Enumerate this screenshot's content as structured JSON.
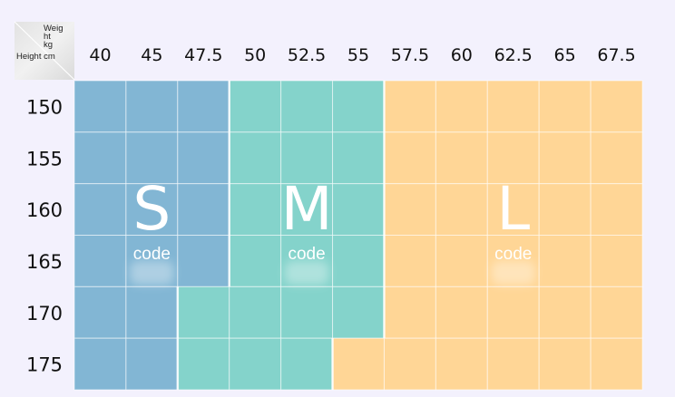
{
  "chart_data": {
    "type": "heatmap",
    "title": "",
    "corner": {
      "weight_label": [
        "Weig",
        "ht",
        "kg"
      ],
      "height_label": "Height cm"
    },
    "x": [
      "40",
      "45",
      "47.5",
      "50",
      "52.5",
      "55",
      "57.5",
      "60",
      "62.5",
      "65",
      "67.5"
    ],
    "y": [
      "150",
      "155",
      "160",
      "165",
      "170",
      "175"
    ],
    "sizes": [
      {
        "key": "S",
        "letter": "S",
        "code": "code",
        "color": "#82b6d4"
      },
      {
        "key": "M",
        "letter": "M",
        "code": "code",
        "color": "#84d3cb"
      },
      {
        "key": "L",
        "letter": "L",
        "code": "code",
        "color": "#ffd696"
      }
    ],
    "grid": [
      [
        "S",
        "S",
        "S",
        "M",
        "M",
        "M",
        "L",
        "L",
        "L",
        "L",
        "L"
      ],
      [
        "S",
        "S",
        "S",
        "M",
        "M",
        "M",
        "L",
        "L",
        "L",
        "L",
        "L"
      ],
      [
        "S",
        "S",
        "S",
        "M",
        "M",
        "M",
        "L",
        "L",
        "L",
        "L",
        "L"
      ],
      [
        "S",
        "S",
        "S",
        "M",
        "M",
        "M",
        "L",
        "L",
        "L",
        "L",
        "L"
      ],
      [
        "S",
        "S",
        "M",
        "M",
        "M",
        "M",
        "L",
        "L",
        "L",
        "L",
        "L"
      ],
      [
        "S",
        "S",
        "M",
        "M",
        "M",
        "L",
        "L",
        "L",
        "L",
        "L",
        "L"
      ]
    ]
  }
}
